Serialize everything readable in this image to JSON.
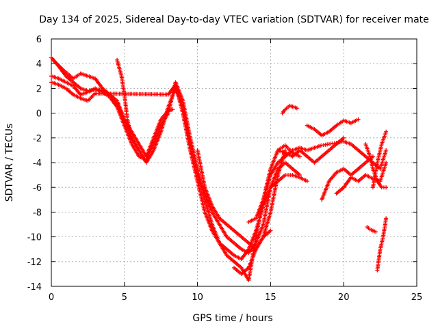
{
  "chart_data": {
    "type": "scatter",
    "title": "Day 134 of 2025, Sidereal Day-to-day VTEC variation (SDTVAR) for receiver mate",
    "xlabel": "GPS time / hours",
    "ylabel": "SDTVAR / TECUs",
    "xlim": [
      0,
      25
    ],
    "ylim": [
      -14,
      6
    ],
    "xticks": [
      0,
      5,
      10,
      15,
      20,
      25
    ],
    "yticks": [
      -14,
      -12,
      -10,
      -8,
      -6,
      -4,
      -2,
      0,
      2,
      4,
      6
    ],
    "grid": true,
    "marker": "plus",
    "series_color": "#ff0000",
    "series": [
      {
        "x": [
          0.0,
          0.5,
          1.0,
          1.5,
          2.0,
          2.5,
          3.0,
          3.5,
          4.0,
          4.5,
          5.0,
          5.5,
          6.0,
          6.5,
          7.0,
          7.5,
          8.0,
          8.5,
          9.0,
          9.5,
          10.0,
          10.5,
          11.0,
          11.5,
          12.0,
          12.5,
          13.0,
          13.5,
          14.0,
          14.5,
          15.0,
          15.5,
          16.0,
          16.5,
          17.0
        ],
        "y": [
          4.5,
          3.8,
          3.0,
          2.5,
          2.0,
          1.8,
          1.9,
          1.7,
          1.3,
          0.5,
          -1.0,
          -2.5,
          -3.5,
          -3.8,
          -2.5,
          -1.0,
          0.0,
          2.5,
          1.0,
          -2.0,
          -4.5,
          -7.0,
          -9.0,
          -10.5,
          -11.5,
          -12.0,
          -12.5,
          -13.5,
          -10.0,
          -7.0,
          -4.5,
          -3.0,
          -2.6,
          -3.2,
          -3.5
        ]
      },
      {
        "x": [
          0.0,
          0.5,
          1.0,
          1.5,
          2.0,
          2.5,
          3.0,
          3.5,
          4.0,
          4.5,
          5.0,
          5.5,
          6.0,
          6.5,
          7.0,
          7.5,
          8.0,
          8.5,
          9.0,
          9.5,
          10.0,
          10.5,
          11.0,
          11.5,
          12.0,
          12.5,
          13.0,
          13.5,
          14.0,
          14.5,
          15.0,
          15.5,
          16.0,
          16.5,
          17.0
        ],
        "y": [
          3.0,
          2.8,
          2.5,
          2.2,
          1.5,
          1.7,
          2.0,
          1.8,
          1.5,
          0.8,
          -0.5,
          -2.0,
          -3.0,
          -4.0,
          -3.0,
          -1.5,
          0.5,
          2.0,
          0.5,
          -2.5,
          -5.0,
          -6.5,
          -8.0,
          -9.0,
          -10.0,
          -10.5,
          -11.0,
          -11.3,
          -10.5,
          -9.0,
          -6.0,
          -4.5,
          -4.0,
          -4.5,
          -5.0
        ]
      },
      {
        "x": [
          0.0,
          0.5,
          1.0,
          1.5,
          2.0,
          2.5,
          3.0,
          8.0,
          8.5,
          9.0,
          9.5,
          10.0,
          10.5,
          11.0,
          11.5,
          12.0,
          12.5,
          13.0,
          13.5,
          14.0,
          14.5,
          15.0,
          15.5,
          16.0,
          16.5,
          17.0,
          17.5
        ],
        "y": [
          2.5,
          2.3,
          2.0,
          1.5,
          1.2,
          1.0,
          1.6,
          1.5,
          2.3,
          0.0,
          -3.0,
          -5.5,
          -8.0,
          -9.5,
          -10.5,
          -11.0,
          -11.5,
          -11.8,
          -11.0,
          -9.5,
          -7.5,
          -6.0,
          -5.5,
          -5.0,
          -5.0,
          -5.2,
          -5.5
        ]
      },
      {
        "x": [
          0.2,
          0.8,
          1.5,
          2.0,
          2.5,
          3.0,
          3.5,
          4.0,
          4.5,
          5.0,
          5.5,
          6.0,
          6.5
        ],
        "y": [
          4.2,
          3.5,
          2.8,
          3.2,
          3.0,
          2.8,
          2.0,
          1.5,
          1.0,
          -0.5,
          -1.5,
          -2.5,
          -3.5
        ]
      },
      {
        "x": [
          4.5,
          4.8,
          5.0,
          5.2,
          5.5,
          6.0
        ],
        "y": [
          4.3,
          3.0,
          1.5,
          -0.5,
          -2.0,
          -3.0
        ]
      },
      {
        "x": [
          6.5,
          7.0,
          7.5,
          8.0,
          8.3
        ],
        "y": [
          -3.5,
          -2.0,
          -0.5,
          0.2,
          0.3
        ]
      },
      {
        "x": [
          10.0,
          10.5,
          11.0,
          11.5,
          12.0,
          12.5,
          13.0,
          13.5,
          14.0,
          14.5,
          15.0,
          15.5,
          16.0
        ],
        "y": [
          -3.0,
          -6.0,
          -7.5,
          -8.5,
          -9.0,
          -9.5,
          -10.0,
          -10.5,
          -11.0,
          -10.0,
          -8.0,
          -5.0,
          -3.0
        ]
      },
      {
        "x": [
          12.5,
          13.0,
          13.5,
          14.0,
          14.5,
          15.0
        ],
        "y": [
          -12.5,
          -13.0,
          -12.5,
          -11.0,
          -10.0,
          -9.5
        ]
      },
      {
        "x": [
          13.5,
          14.0,
          14.5,
          15.0,
          15.5,
          16.0,
          16.5,
          17.0,
          17.5,
          18.0,
          18.5,
          19.0,
          19.5,
          20.0,
          20.5,
          21.0,
          21.5,
          22.0,
          22.5,
          22.9
        ],
        "y": [
          -8.8,
          -8.5,
          -7.0,
          -5.0,
          -4.0,
          -3.5,
          -3.0,
          -2.8,
          -3.0,
          -2.8,
          -2.6,
          -2.5,
          -2.4,
          -2.3,
          -2.5,
          -3.0,
          -3.5,
          -4.0,
          -4.5,
          -3.0
        ]
      },
      {
        "x": [
          15.5,
          16.0,
          16.5,
          17.0,
          17.5,
          18.0,
          18.5,
          19.0,
          19.5,
          20.0
        ],
        "y": [
          -3.0,
          -3.2,
          -3.5,
          -3.0,
          -3.5,
          -4.0,
          -3.5,
          -3.0,
          -2.5,
          -2.0
        ]
      },
      {
        "x": [
          15.8,
          16.0,
          16.3,
          16.6,
          16.8
        ],
        "y": [
          0.0,
          0.3,
          0.6,
          0.5,
          0.4
        ]
      },
      {
        "x": [
          17.5,
          18.0,
          18.5,
          19.0,
          19.5,
          20.0,
          20.5,
          21.0
        ],
        "y": [
          -1.0,
          -1.3,
          -1.8,
          -1.5,
          -1.0,
          -0.6,
          -0.8,
          -0.5
        ]
      },
      {
        "x": [
          18.5,
          19.0,
          19.5,
          20.0,
          20.5,
          21.0,
          21.5,
          22.0
        ],
        "y": [
          -7.0,
          -5.5,
          -4.8,
          -4.5,
          -5.0,
          -4.5,
          -4.0,
          -3.5
        ]
      },
      {
        "x": [
          19.5,
          20.0,
          20.5,
          21.0,
          21.5,
          22.0,
          22.5,
          22.9
        ],
        "y": [
          -6.5,
          -6.0,
          -5.2,
          -5.5,
          -5.0,
          -5.3,
          -5.5,
          -4.0
        ]
      },
      {
        "x": [
          21.5,
          21.8,
          22.0,
          22.3,
          22.6,
          22.9
        ],
        "y": [
          -2.5,
          -3.5,
          -4.5,
          -5.5,
          -6.0,
          -6.0
        ]
      },
      {
        "x": [
          22.0,
          22.3,
          22.6,
          22.9
        ],
        "y": [
          -6.0,
          -4.0,
          -2.5,
          -1.5
        ]
      },
      {
        "x": [
          21.6,
          21.8,
          22.0,
          22.2
        ],
        "y": [
          -9.2,
          -9.4,
          -9.5,
          -9.6
        ]
      },
      {
        "x": [
          22.3,
          22.5,
          22.7,
          22.9
        ],
        "y": [
          -12.7,
          -11.0,
          -10.0,
          -8.5
        ]
      }
    ]
  }
}
